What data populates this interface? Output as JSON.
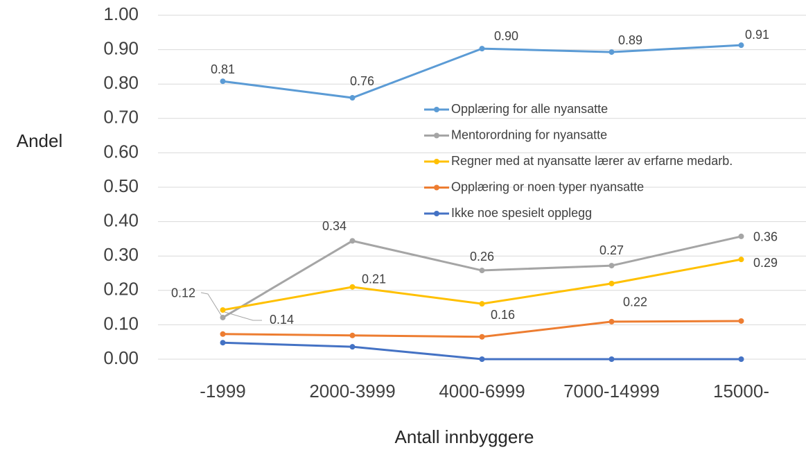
{
  "chart_data": {
    "type": "line",
    "x_label": "Antall innbyggere",
    "y_label": "Andel",
    "categories": [
      "-1999",
      "2000-3999",
      "4000-6999",
      "7000-14999",
      "15000-"
    ],
    "ylim": [
      0,
      1
    ],
    "yticks": [
      {
        "value": 0,
        "label": "0.00"
      },
      {
        "value": 0.1,
        "label": "0.10"
      },
      {
        "value": 0.2,
        "label": "0.20"
      },
      {
        "value": 0.3,
        "label": "0.30"
      },
      {
        "value": 0.4,
        "label": "0.40"
      },
      {
        "value": 0.5,
        "label": "0.50"
      },
      {
        "value": 0.6,
        "label": "0.60"
      },
      {
        "value": 0.7,
        "label": "0.70"
      },
      {
        "value": 0.8,
        "label": "0.80"
      },
      {
        "value": 0.9,
        "label": "0.90"
      },
      {
        "value": 1,
        "label": "1.00"
      }
    ],
    "grid": true,
    "series": [
      {
        "name": "Opplæring for alle nyansatte",
        "color": "#5b9bd5",
        "values": [
          0.808,
          0.76,
          0.903,
          0.893,
          0.913
        ],
        "value_labels": [
          "0.81",
          "0.76",
          "0.90",
          "0.89",
          "0.91"
        ]
      },
      {
        "name": "Mentorordning for nyansatte",
        "color": "#a5a5a5",
        "values": [
          0.121,
          0.344,
          0.258,
          0.272,
          0.357
        ],
        "value_labels": [
          "0.12",
          "0.34",
          "0.26",
          "0.27",
          "0.36"
        ]
      },
      {
        "name": "Regner med at nyansatte lærer av erfarne medarb.",
        "color": "#ffc000",
        "values": [
          0.143,
          0.21,
          0.161,
          0.22,
          0.29
        ],
        "value_labels": [
          "0.14",
          "0.21",
          "0.16",
          "0.22",
          "0.29"
        ]
      },
      {
        "name": "Opplæring or noen typer nyansatte",
        "color": "#ed7d31",
        "values": [
          0.073,
          0.069,
          0.065,
          0.109,
          0.111
        ]
      },
      {
        "name": "Ikke noe spesielt opplegg",
        "color": "#4472c4",
        "values": [
          0.048,
          0.036,
          0,
          0,
          0
        ]
      }
    ]
  }
}
